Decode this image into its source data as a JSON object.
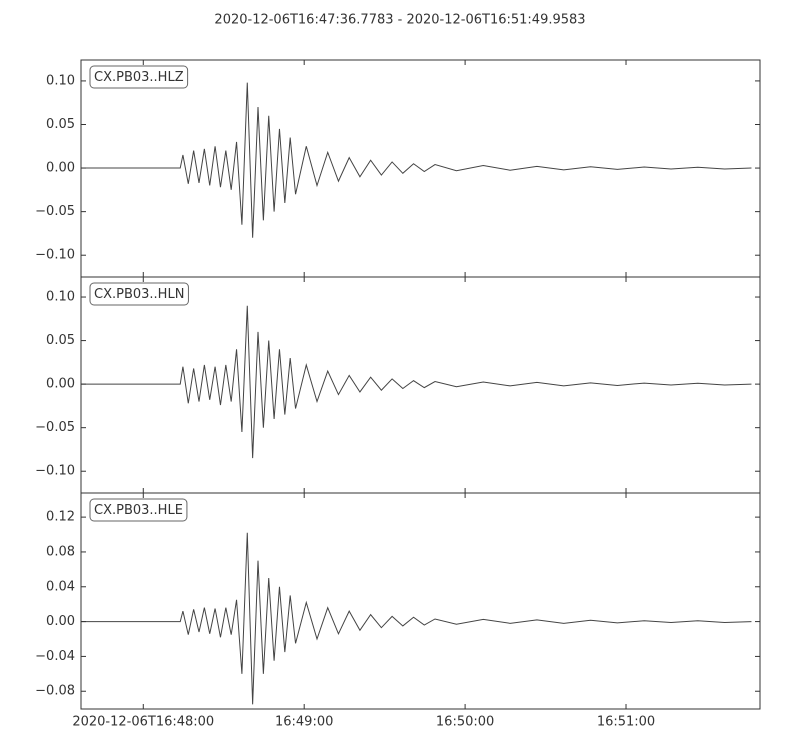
{
  "title": "2020-12-06T16:47:36.7783  -  2020-12-06T16:51:49.9583",
  "chart_data": [
    {
      "type": "line",
      "x": [
        0,
        37,
        38,
        40,
        42,
        44,
        46,
        48,
        50,
        52,
        54,
        56,
        58,
        60,
        62,
        64,
        66,
        68,
        70,
        72,
        74,
        76,
        78,
        80,
        84,
        88,
        92,
        96,
        100,
        104,
        108,
        112,
        116,
        120,
        124,
        128,
        132,
        140,
        150,
        160,
        170,
        180,
        190,
        200,
        210,
        220,
        230,
        240,
        250
      ],
      "series": [
        {
          "name": "CX.PB03..HLZ",
          "color": "#444444",
          "values": [
            0,
            0,
            0.015,
            -0.018,
            0.02,
            -0.017,
            0.022,
            -0.02,
            0.025,
            -0.022,
            0.02,
            -0.025,
            0.03,
            -0.065,
            0.098,
            -0.08,
            0.07,
            -0.06,
            0.06,
            -0.05,
            0.045,
            -0.04,
            0.035,
            -0.03,
            0.025,
            -0.02,
            0.018,
            -0.015,
            0.012,
            -0.01,
            0.009,
            -0.008,
            0.007,
            -0.006,
            0.005,
            -0.004,
            0.004,
            -0.003,
            0.003,
            -0.0025,
            0.002,
            -0.002,
            0.0015,
            -0.0015,
            0.0012,
            -0.001,
            0.001,
            -0.001,
            0
          ]
        }
      ],
      "xlim": [
        0,
        253.18
      ],
      "ylim": [
        -0.125,
        0.124
      ],
      "yticks": [
        {
          "value": -0.1,
          "label": "−0.10"
        },
        {
          "value": -0.05,
          "label": "−0.05"
        },
        {
          "value": 0,
          "label": "0.00"
        },
        {
          "value": 0.05,
          "label": "0.05"
        },
        {
          "value": 0.1,
          "label": "0.10"
        }
      ]
    },
    {
      "type": "line",
      "x": [
        0,
        37,
        38,
        40,
        42,
        44,
        46,
        48,
        50,
        52,
        54,
        56,
        58,
        60,
        62,
        64,
        66,
        68,
        70,
        72,
        74,
        76,
        78,
        80,
        84,
        88,
        92,
        96,
        100,
        104,
        108,
        112,
        116,
        120,
        124,
        128,
        132,
        140,
        150,
        160,
        170,
        180,
        190,
        200,
        210,
        220,
        230,
        240,
        250
      ],
      "series": [
        {
          "name": "CX.PB03..HLN",
          "color": "#444444",
          "values": [
            0,
            0,
            0.02,
            -0.022,
            0.018,
            -0.02,
            0.022,
            -0.018,
            0.02,
            -0.024,
            0.022,
            -0.02,
            0.04,
            -0.055,
            0.09,
            -0.085,
            0.06,
            -0.05,
            0.05,
            -0.04,
            0.04,
            -0.035,
            0.03,
            -0.028,
            0.022,
            -0.02,
            0.015,
            -0.012,
            0.01,
            -0.009,
            0.008,
            -0.007,
            0.006,
            -0.005,
            0.004,
            -0.004,
            0.003,
            -0.003,
            0.0025,
            -0.002,
            0.002,
            -0.002,
            0.0015,
            -0.0015,
            0.0012,
            -0.001,
            0.001,
            -0.001,
            0
          ]
        }
      ],
      "xlim": [
        0,
        253.18
      ],
      "ylim": [
        -0.125,
        0.123
      ],
      "yticks": [
        {
          "value": -0.1,
          "label": "−0.10"
        },
        {
          "value": -0.05,
          "label": "−0.05"
        },
        {
          "value": 0,
          "label": "0.00"
        },
        {
          "value": 0.05,
          "label": "0.05"
        },
        {
          "value": 0.1,
          "label": "0.10"
        }
      ]
    },
    {
      "type": "line",
      "x": [
        0,
        37,
        38,
        40,
        42,
        44,
        46,
        48,
        50,
        52,
        54,
        56,
        58,
        60,
        62,
        64,
        66,
        68,
        70,
        72,
        74,
        76,
        78,
        80,
        84,
        88,
        92,
        96,
        100,
        104,
        108,
        112,
        116,
        120,
        124,
        128,
        132,
        140,
        150,
        160,
        170,
        180,
        190,
        200,
        210,
        220,
        230,
        240,
        250
      ],
      "series": [
        {
          "name": "CX.PB03..HLE",
          "color": "#444444",
          "values": [
            0,
            0,
            0.012,
            -0.015,
            0.014,
            -0.012,
            0.016,
            -0.014,
            0.015,
            -0.018,
            0.016,
            -0.015,
            0.025,
            -0.06,
            0.102,
            -0.095,
            0.07,
            -0.06,
            0.05,
            -0.045,
            0.04,
            -0.035,
            0.03,
            -0.025,
            0.022,
            -0.02,
            0.016,
            -0.014,
            0.012,
            -0.01,
            0.008,
            -0.007,
            0.006,
            -0.005,
            0.005,
            -0.004,
            0.003,
            -0.003,
            0.0025,
            -0.002,
            0.002,
            -0.002,
            0.0015,
            -0.0015,
            0.001,
            -0.001,
            0.001,
            -0.001,
            0
          ]
        }
      ],
      "xlim": [
        0,
        253.18
      ],
      "ylim": [
        -0.1004,
        0.1477
      ],
      "yticks": [
        {
          "value": -0.08,
          "label": "−0.08"
        },
        {
          "value": -0.04,
          "label": "−0.04"
        },
        {
          "value": 0,
          "label": "0.00"
        },
        {
          "value": 0.04,
          "label": "0.04"
        },
        {
          "value": 0.08,
          "label": "0.08"
        },
        {
          "value": 0.12,
          "label": "0.12"
        }
      ],
      "xticks": [
        {
          "value": 23.2217,
          "label": "2020-12-06T16:48:00"
        },
        {
          "value": 83.2217,
          "label": "16:49:00"
        },
        {
          "value": 143.2217,
          "label": "16:50:00"
        },
        {
          "value": 203.2217,
          "label": "16:51:00"
        }
      ]
    }
  ]
}
